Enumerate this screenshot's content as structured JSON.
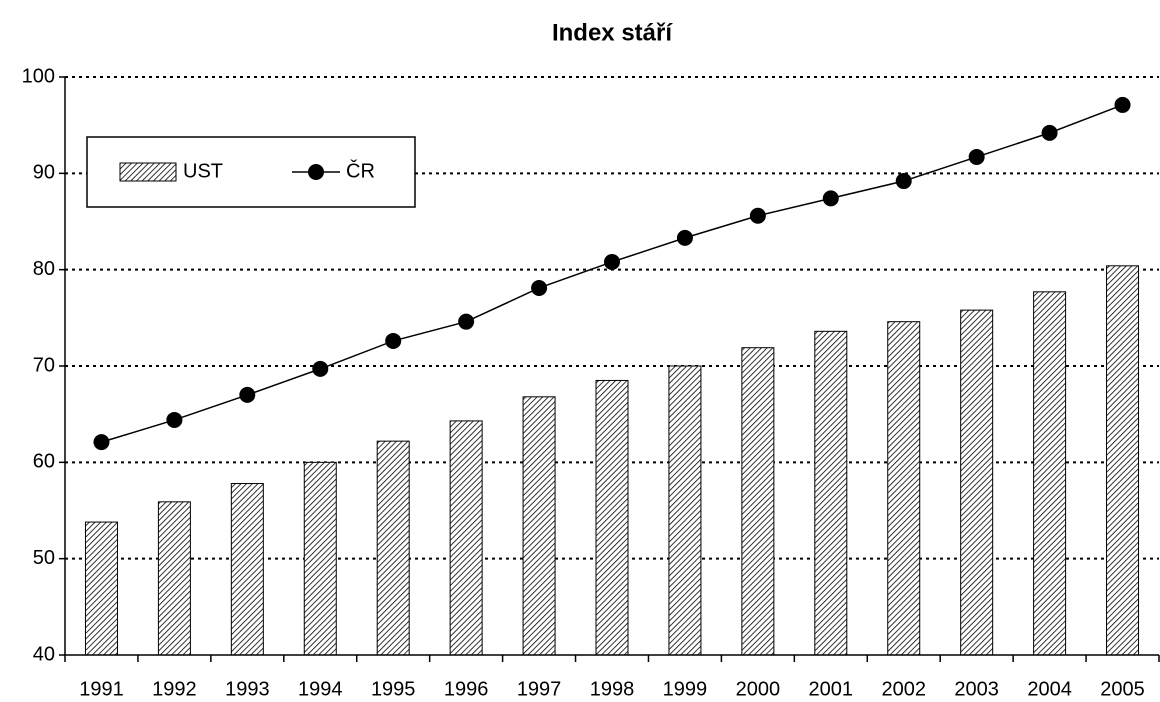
{
  "chart_data": {
    "type": "combo",
    "title": "Index stáří",
    "categories": [
      "1991",
      "1992",
      "1993",
      "1994",
      "1995",
      "1996",
      "1997",
      "1998",
      "1999",
      "2000",
      "2001",
      "2002",
      "2003",
      "2004",
      "2005"
    ],
    "series": [
      {
        "name": "UST",
        "kind": "bar",
        "color": "#000000",
        "values": [
          53.8,
          55.9,
          57.8,
          60.0,
          62.2,
          64.3,
          66.8,
          68.5,
          70.0,
          71.9,
          73.6,
          74.6,
          75.8,
          77.7,
          80.4
        ]
      },
      {
        "name": "ČR",
        "kind": "line",
        "color": "#000000",
        "values": [
          62.1,
          64.4,
          67.0,
          69.7,
          72.6,
          74.6,
          78.1,
          80.8,
          83.3,
          85.6,
          87.4,
          89.2,
          91.7,
          94.2,
          97.1
        ]
      }
    ],
    "ylim": [
      40,
      100
    ],
    "yticks": [
      40,
      50,
      60,
      70,
      80,
      90,
      100
    ],
    "grid": true,
    "legend": "upper left"
  }
}
